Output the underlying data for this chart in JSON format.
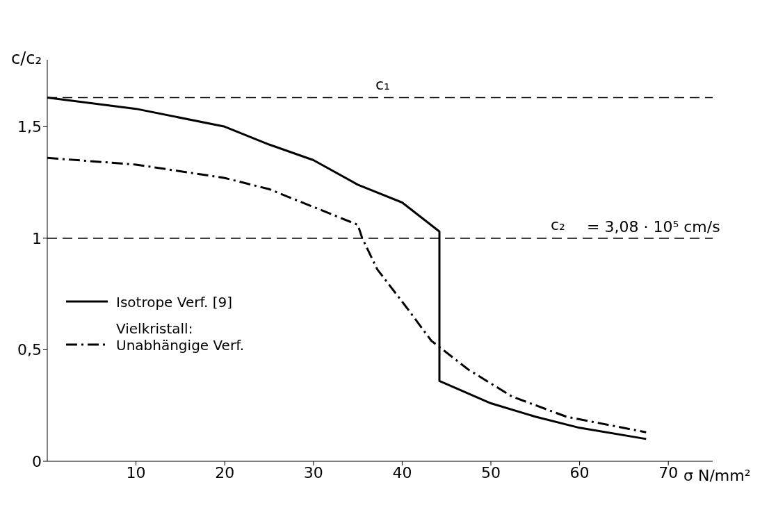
{
  "chart_data": {
    "type": "line",
    "xlabel": "σ N/mm²",
    "ylabel": "c/c₂",
    "xlim": [
      0,
      75
    ],
    "ylim": [
      0,
      1.8
    ],
    "xticks": [
      10,
      20,
      30,
      40,
      50,
      60,
      70
    ],
    "yticks": [
      0,
      {
        "value": 0.5,
        "label": "0,5"
      },
      1,
      {
        "value": 1.5,
        "label": "1,5"
      }
    ],
    "grid": false,
    "legend": "left",
    "marker": "none",
    "series": [
      {
        "name": "Isotrope Verf. [9]",
        "color": "#000000",
        "line_style": "solid",
        "x": [
          0,
          10,
          20,
          25,
          30,
          35,
          40,
          44.2,
          44.2,
          50,
          55,
          60,
          67.5
        ],
        "values": [
          1.63,
          1.58,
          1.5,
          1.42,
          1.35,
          1.24,
          1.16,
          1.03,
          0.36,
          0.26,
          0.2,
          0.15,
          0.1
        ]
      },
      {
        "name": "Vielkristall:\nUnabhängige Verf.",
        "color": "#000000",
        "line_style": "dashdot",
        "x": [
          0,
          10,
          20,
          25,
          30,
          35,
          35.5,
          37.2,
          40.3,
          43.3,
          47.5,
          52.4,
          58.5,
          67.5
        ],
        "values": [
          1.36,
          1.33,
          1.27,
          1.22,
          1.14,
          1.06,
          1.0,
          0.86,
          0.7,
          0.54,
          0.41,
          0.29,
          0.2,
          0.13
        ]
      }
    ],
    "ref_lines": [
      {
        "axis": "y",
        "value": 1.63,
        "label": "c₁",
        "line_style": "dashed",
        "color": "#000000"
      },
      {
        "axis": "y",
        "value": 1,
        "label": "c₂",
        "line_style": "dashed",
        "color": "#000000"
      }
    ],
    "annotations": [
      "= 3,08 · 10⁵ cm/s"
    ]
  }
}
